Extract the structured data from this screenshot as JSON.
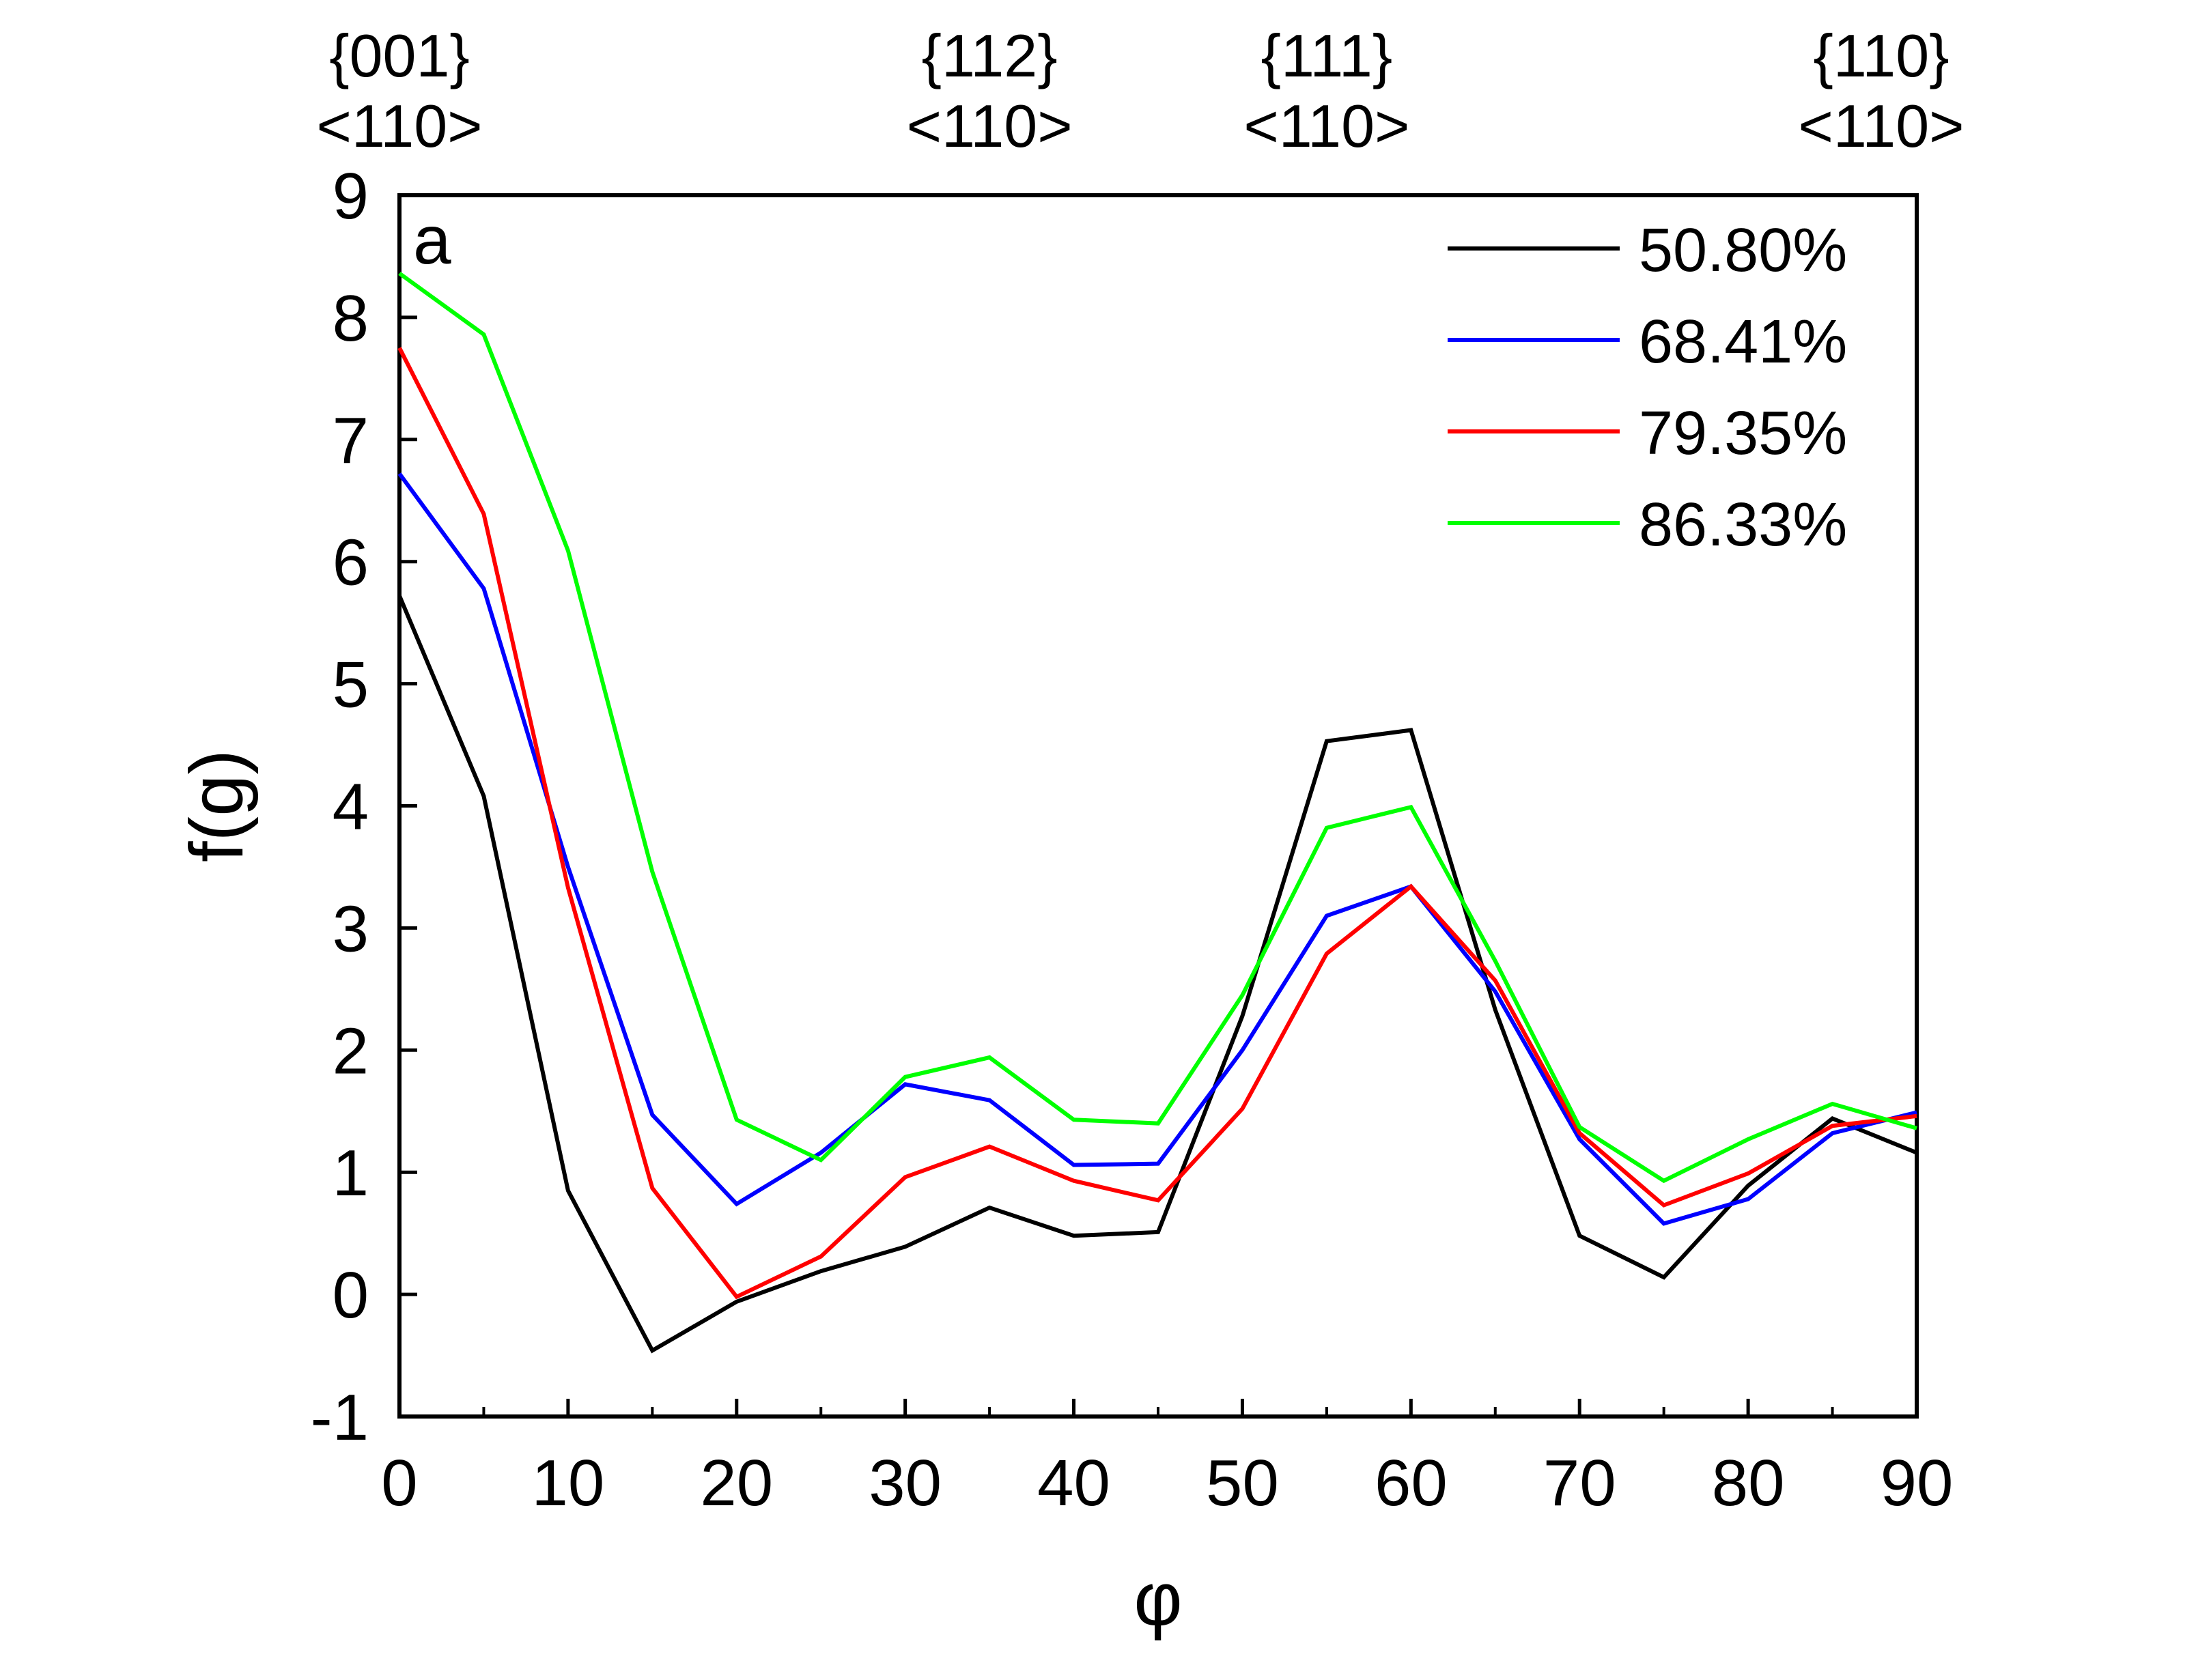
{
  "chart_data": {
    "type": "line",
    "title": "",
    "panel_label": "a",
    "xlabel": "φ",
    "ylabel": "f(g)",
    "xlim": [
      0,
      90
    ],
    "ylim": [
      -1,
      9
    ],
    "xticks": [
      0,
      10,
      20,
      30,
      40,
      50,
      60,
      70,
      80,
      90
    ],
    "yticks": [
      -1,
      0,
      1,
      2,
      3,
      4,
      5,
      6,
      7,
      8,
      9
    ],
    "grid": false,
    "legend_position": "top-right",
    "top_annotations": [
      {
        "x": 0,
        "line1": "{001}",
        "line2": "<110>"
      },
      {
        "x": 35,
        "line1": "{112}",
        "line2": "<110>"
      },
      {
        "x": 55,
        "line1": "{111}",
        "line2": "<110>"
      },
      {
        "x": 90,
        "line1": "{110}",
        "line2": "<110>"
      }
    ],
    "x": [
      0,
      5,
      10,
      15,
      20,
      25,
      30,
      35,
      40,
      45,
      50,
      55,
      60,
      65,
      70,
      75,
      80,
      85,
      90
    ],
    "series": [
      {
        "name": "50.80%",
        "color": "#000000",
        "values": [
          5.72,
          4.08,
          0.85,
          -0.46,
          -0.06,
          0.19,
          0.39,
          0.71,
          0.48,
          0.51,
          2.28,
          4.53,
          4.62,
          2.33,
          0.48,
          0.14,
          0.89,
          1.44,
          1.16
        ]
      },
      {
        "name": "68.41%",
        "color": "#0000ff",
        "values": [
          6.72,
          5.78,
          3.5,
          1.47,
          0.74,
          1.16,
          1.72,
          1.59,
          1.06,
          1.07,
          2.0,
          3.1,
          3.34,
          2.48,
          1.27,
          0.58,
          0.78,
          1.32,
          1.49
        ]
      },
      {
        "name": "79.35%",
        "color": "#ff0000",
        "values": [
          7.75,
          6.39,
          3.33,
          0.87,
          -0.02,
          0.31,
          0.96,
          1.21,
          0.93,
          0.77,
          1.52,
          2.79,
          3.34,
          2.57,
          1.32,
          0.73,
          0.99,
          1.38,
          1.46
        ]
      },
      {
        "name": "86.33%",
        "color": "#00ff00",
        "values": [
          8.36,
          7.86,
          6.09,
          3.46,
          1.43,
          1.1,
          1.78,
          1.94,
          1.43,
          1.4,
          2.45,
          3.82,
          3.99,
          2.73,
          1.37,
          0.93,
          1.27,
          1.56,
          1.36
        ]
      }
    ]
  }
}
